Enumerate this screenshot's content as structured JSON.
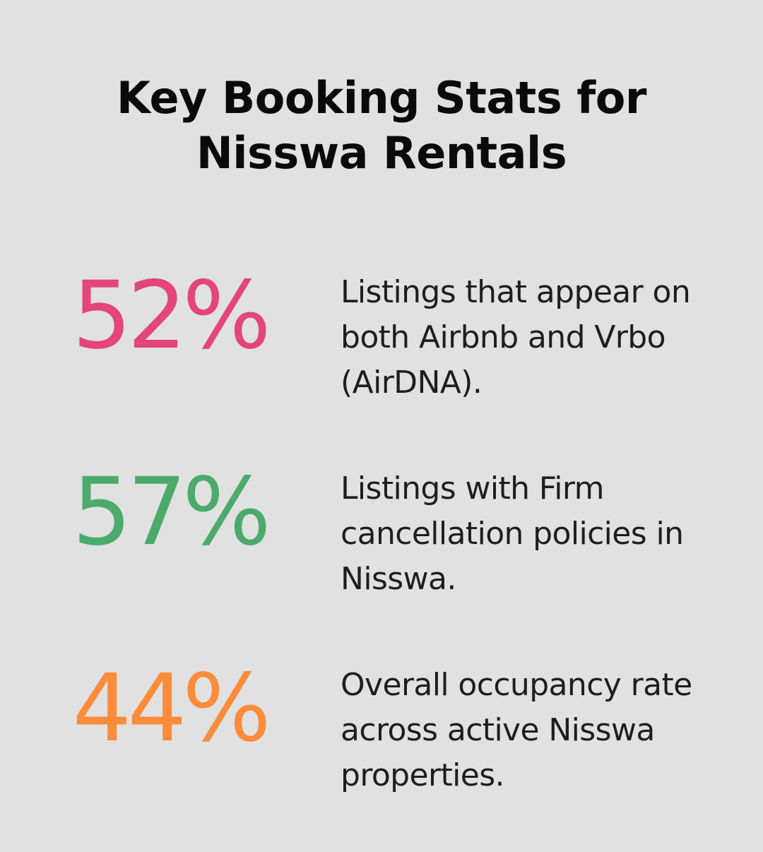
{
  "title": {
    "line1": "Key Booking Stats for",
    "line2": "Nisswa Rentals"
  },
  "stats": [
    {
      "value": "52%",
      "color": "#e4457a",
      "lines": [
        "Listings that appear on",
        "both Airbnb and Vrbo",
        "(AirDNA)."
      ]
    },
    {
      "value": "57%",
      "color": "#4caa6c",
      "lines": [
        "Listings with Firm",
        "cancellation policies in",
        "Nisswa."
      ]
    },
    {
      "value": "44%",
      "color": "#fb8c3a",
      "lines": [
        "Overall occupancy rate",
        "across active Nisswa",
        "properties."
      ]
    }
  ]
}
